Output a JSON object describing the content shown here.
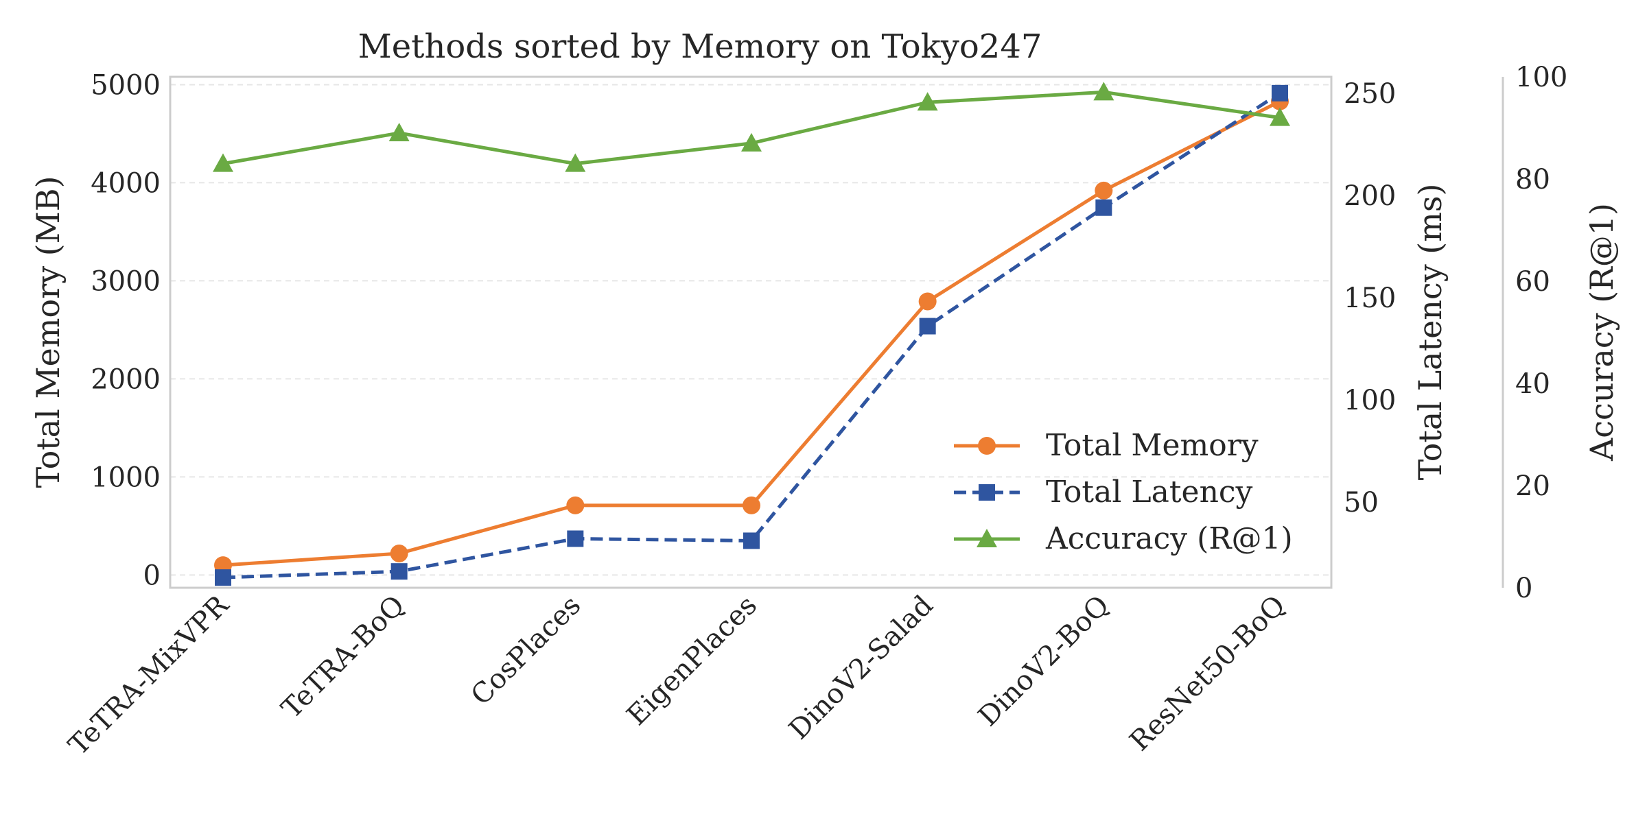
{
  "chart_data": {
    "type": "line",
    "title": "Methods sorted by Memory on Tokyo247",
    "categories": [
      "TeTRA-MixVPR",
      "TeTRA-BoQ",
      "CosPlaces",
      "EigenPlaces",
      "DinoV2-Salad",
      "DinoV2-BoQ",
      "ResNet50-BoQ"
    ],
    "axes": {
      "left": {
        "label": "Total Memory (MB)",
        "ylim": [
          -130,
          5080
        ],
        "ticks": [
          0,
          1000,
          2000,
          3000,
          4000,
          5000
        ]
      },
      "right": {
        "label": "Total Latency (ms)",
        "ylim": [
          8,
          258
        ],
        "ticks": [
          50,
          100,
          150,
          200,
          250
        ]
      },
      "far_right": {
        "label": "Accuracy (R@1)",
        "ylim": [
          0,
          100
        ],
        "ticks": [
          0,
          20,
          40,
          60,
          80,
          100
        ]
      }
    },
    "series": [
      {
        "name": "Total Memory",
        "axis": "left",
        "color": "#ed7d31",
        "marker": "circle",
        "dash": "solid",
        "values": [
          100,
          220,
          710,
          710,
          2790,
          3920,
          4830
        ]
      },
      {
        "name": "Total Latency",
        "axis": "right",
        "color": "#2f55a0",
        "marker": "square",
        "dash": "dashed",
        "values": [
          13,
          16,
          32,
          31,
          136,
          194,
          250
        ]
      },
      {
        "name": "Accuracy (R@1)",
        "axis": "far_right",
        "color": "#6aaa43",
        "marker": "triangle",
        "dash": "solid",
        "values": [
          83,
          89,
          83,
          87,
          95,
          97,
          92
        ]
      }
    ],
    "grid": true,
    "legend_position": "lower-right"
  }
}
